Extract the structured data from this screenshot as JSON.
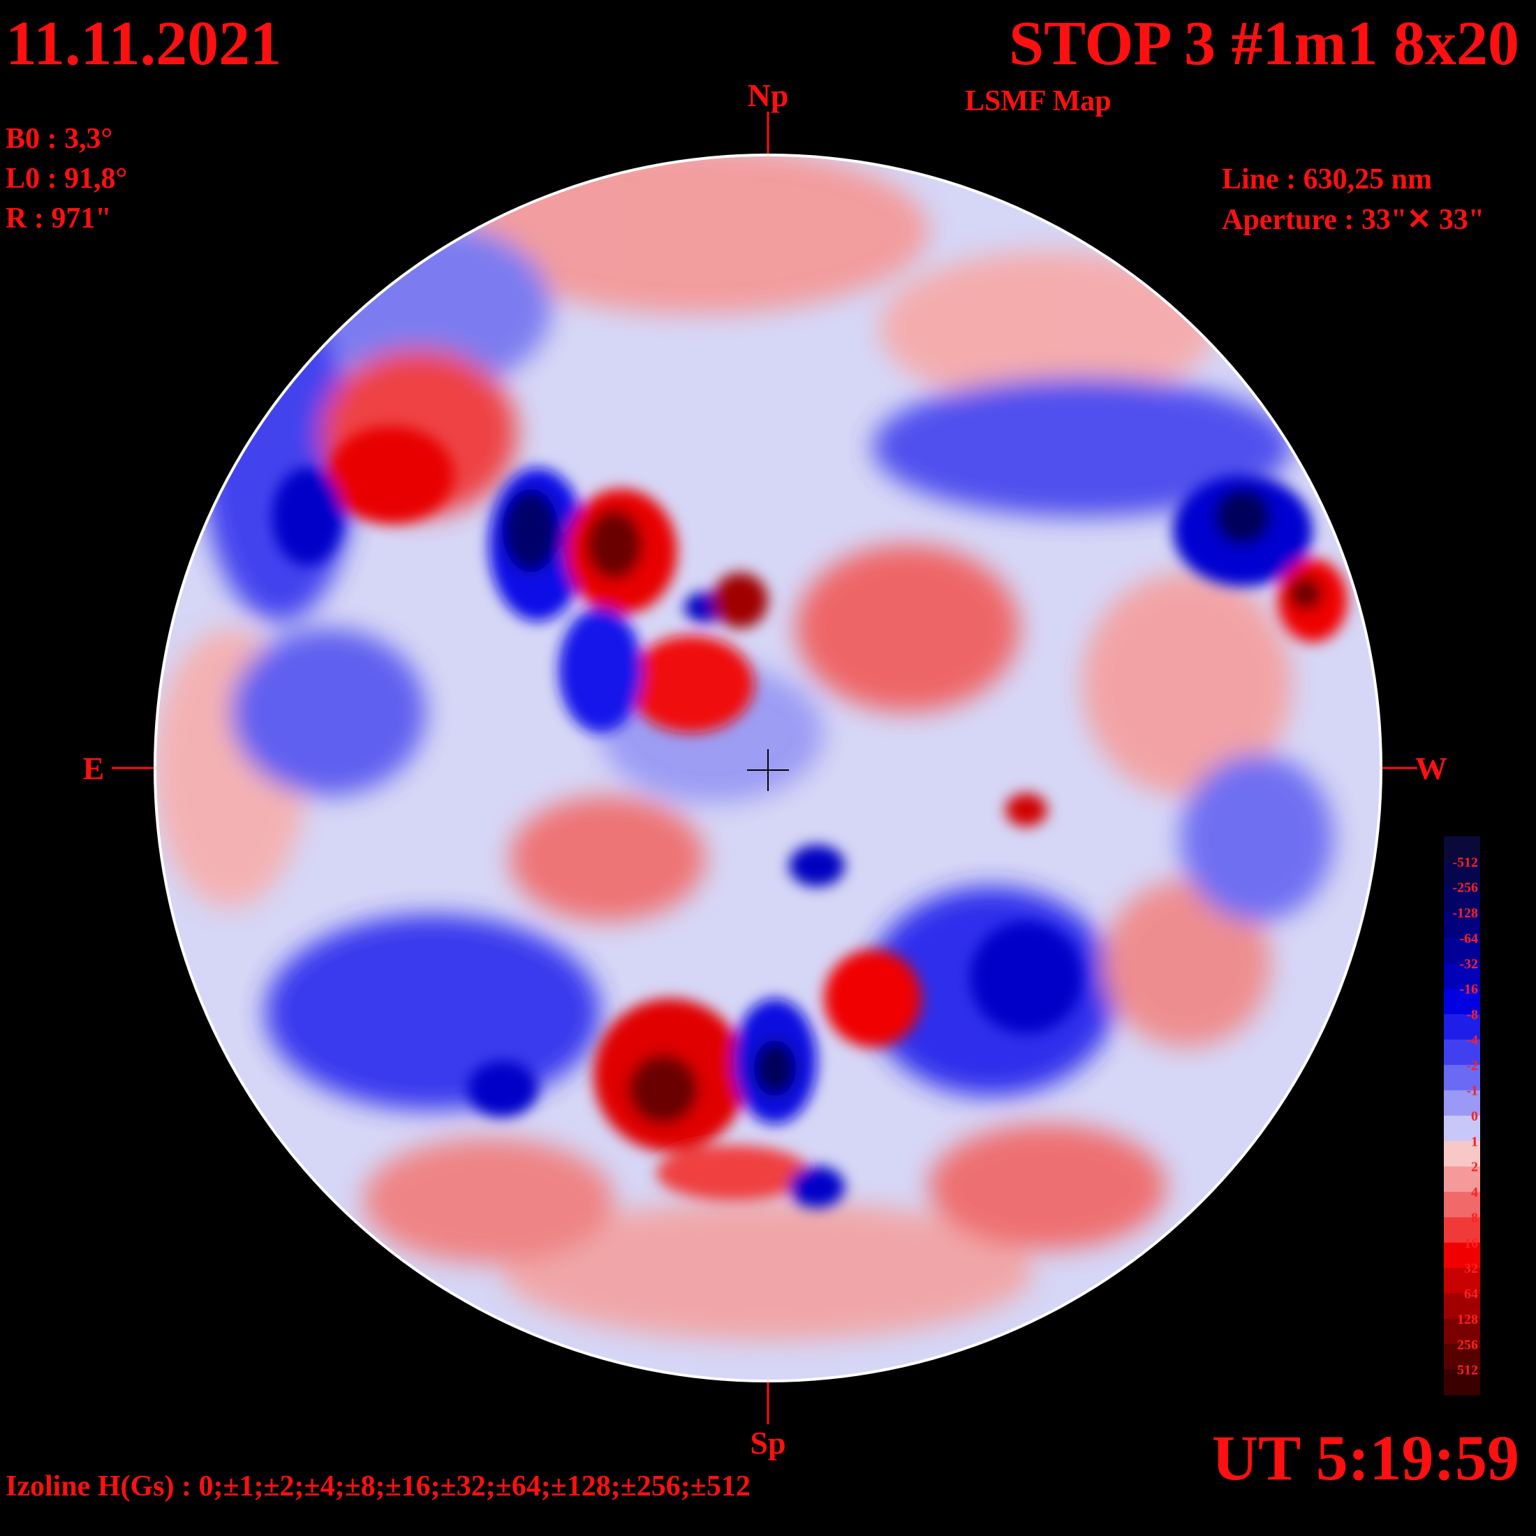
{
  "header": {
    "date": "11.11.2021",
    "title": "STOP 3 #1m1 8x20",
    "subtitle": "LSMF  Map"
  },
  "params": {
    "b0": "B0 : 3,3°",
    "l0": "L0 : 91,8°",
    "r": "R  : 971\"",
    "line": "Line :  630,25 nm",
    "aperture": "Aperture : 33\"✕ 33\""
  },
  "directions": {
    "north": "Np",
    "south": "Sp",
    "east": "E",
    "west": "W"
  },
  "footer": {
    "ut": "UT 5:19:59",
    "izoline": "Izoline H(Gs) : 0;±1;±2;±4;±8;±16;±32;±64;±128;±256;±512"
  },
  "colorbar": {
    "labels": [
      "-512",
      "-256",
      "-128",
      "-64",
      "-32",
      "-16",
      "-8",
      "-4",
      "-2",
      "-1",
      "0",
      "1",
      "2",
      "4",
      "8",
      "16",
      "32",
      "64",
      "128",
      "256",
      "512"
    ],
    "colors": [
      "#0a0a3a",
      "#06064f",
      "#030367",
      "#00007f",
      "#000099",
      "#0000b8",
      "#0000e0",
      "#1e1ee8",
      "#4040f0",
      "#6a6af4",
      "#9a9af6",
      "#c8c8f8",
      "#f8c8c8",
      "#f49a9a",
      "#f06a6a",
      "#f03a3a",
      "#f00000",
      "#c80000",
      "#a00000",
      "#7a0000",
      "#560000",
      "#3a0000"
    ]
  },
  "map_colors": {
    "strong_negative": "#00008a",
    "negative": "#1a1af0",
    "weak_negative": "#8c8cf2",
    "faint_negative": "#c8c8f8",
    "faint_positive": "#f8c8c8",
    "weak_positive": "#f28c8c",
    "positive": "#f01818",
    "strong_positive": "#8a0000",
    "isoline_zero": "#ffffff"
  }
}
